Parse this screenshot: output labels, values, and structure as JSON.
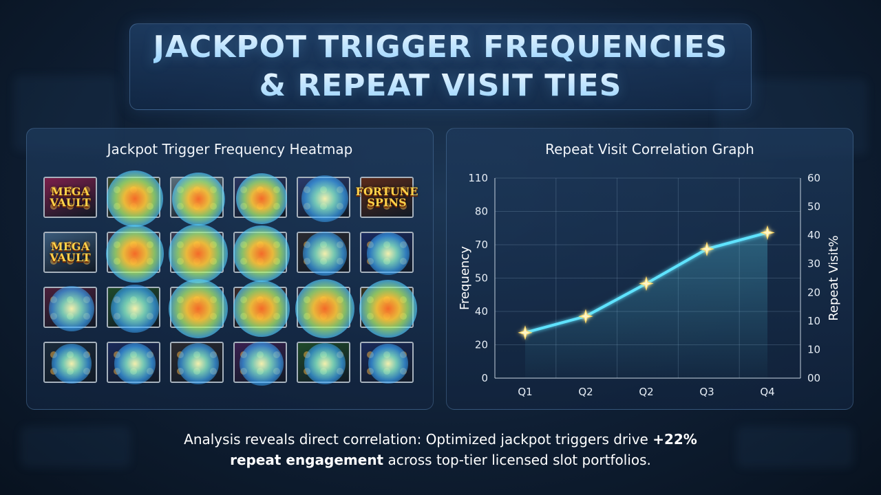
{
  "title": {
    "line1": "JACKPOT TRIGGER FREQUENCIES",
    "line2": "& REPEAT VISIT TIES"
  },
  "heatmap_panel": {
    "title": "Jackpot Trigger Frequency Heatmap",
    "tiles": [
      {
        "label": "MEGA VAULT",
        "bg": "#7a1f4a",
        "heat": 0.0
      },
      {
        "label": "",
        "bg": "#3a4a2a",
        "heat": 0.85
      },
      {
        "label": "",
        "bg": "#5a6e7a",
        "heat": 0.75
      },
      {
        "label": "",
        "bg": "#2a3560",
        "heat": 0.7
      },
      {
        "label": "",
        "bg": "#2a3a6a",
        "heat": 0.55
      },
      {
        "label": "FORTUNE SPINS",
        "bg": "#5a2a1a",
        "heat": 0.0
      },
      {
        "label": "MEGA VAULT",
        "bg": "#3a5a7a",
        "heat": 0.0
      },
      {
        "label": "",
        "bg": "#3a3040",
        "heat": 0.9
      },
      {
        "label": "",
        "bg": "#3a3a50",
        "heat": 0.95
      },
      {
        "label": "",
        "bg": "#2a3a55",
        "heat": 0.85
      },
      {
        "label": "",
        "bg": "#2a2a30",
        "heat": 0.45
      },
      {
        "label": "",
        "bg": "#1a2a60",
        "heat": 0.4
      },
      {
        "label": "",
        "bg": "#4a1f3a",
        "heat": 0.5
      },
      {
        "label": "",
        "bg": "#1f4a2a",
        "heat": 0.6
      },
      {
        "label": "",
        "bg": "#2a3040",
        "heat": 0.95
      },
      {
        "label": "",
        "bg": "#3a2a2a",
        "heat": 0.85
      },
      {
        "label": "",
        "bg": "#2a2a40",
        "heat": 0.95
      },
      {
        "label": "",
        "bg": "#3a3520",
        "heat": 0.9
      },
      {
        "label": "",
        "bg": "#1a2a3a",
        "heat": 0.3
      },
      {
        "label": "",
        "bg": "#1a2a5a",
        "heat": 0.35
      },
      {
        "label": "",
        "bg": "#2a2a30",
        "heat": 0.35
      },
      {
        "label": "",
        "bg": "#3a2050",
        "heat": 0.45
      },
      {
        "label": "",
        "bg": "#1f4a2a",
        "heat": 0.35
      },
      {
        "label": "",
        "bg": "#1a2a5a",
        "heat": 0.3
      }
    ]
  },
  "chart_panel": {
    "title": "Repeat Visit Correlation Graph"
  },
  "chart_data": {
    "type": "line",
    "title": "Repeat Visit Correlation Graph",
    "categories": [
      "Q1",
      "Q2",
      "Q2",
      "Q3",
      "Q4"
    ],
    "series": [
      {
        "values": [
          25,
          34,
          52,
          71,
          80
        ]
      }
    ],
    "ylabel": "Frequency",
    "y2label": "Repeat Visit%",
    "y_ticks": [
      "0",
      "20",
      "40",
      "50",
      "70",
      "80",
      "110"
    ],
    "y2_ticks": [
      "00",
      "10",
      "10",
      "20",
      "30",
      "40",
      "50",
      "60"
    ],
    "line_color": "#5fe3ff",
    "grid": true
  },
  "caption": {
    "part1": "Analysis reveals direct correlation: Optimized jackpot triggers drive ",
    "bold1": "+22%",
    "bold2": "repeat engagement",
    "part2": " across top-tier licensed slot portfolios."
  }
}
